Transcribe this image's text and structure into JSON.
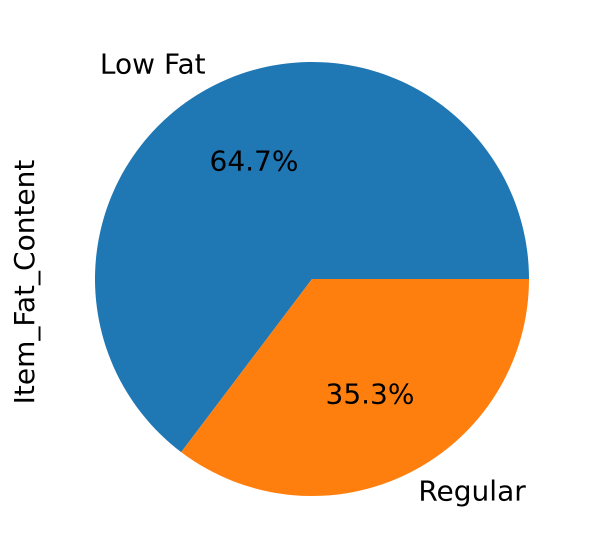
{
  "chart_data": {
    "type": "pie",
    "ylabel": "Item_Fat_Content",
    "categories": [
      "Low Fat",
      "Regular"
    ],
    "values": [
      64.7,
      35.3
    ],
    "pct_labels": [
      "64.7%",
      "35.3%"
    ],
    "colors": [
      "#1f77b4",
      "#ff7f0e"
    ],
    "start_angle_deg": 0,
    "direction": "counterclockwise",
    "legend": "none"
  }
}
